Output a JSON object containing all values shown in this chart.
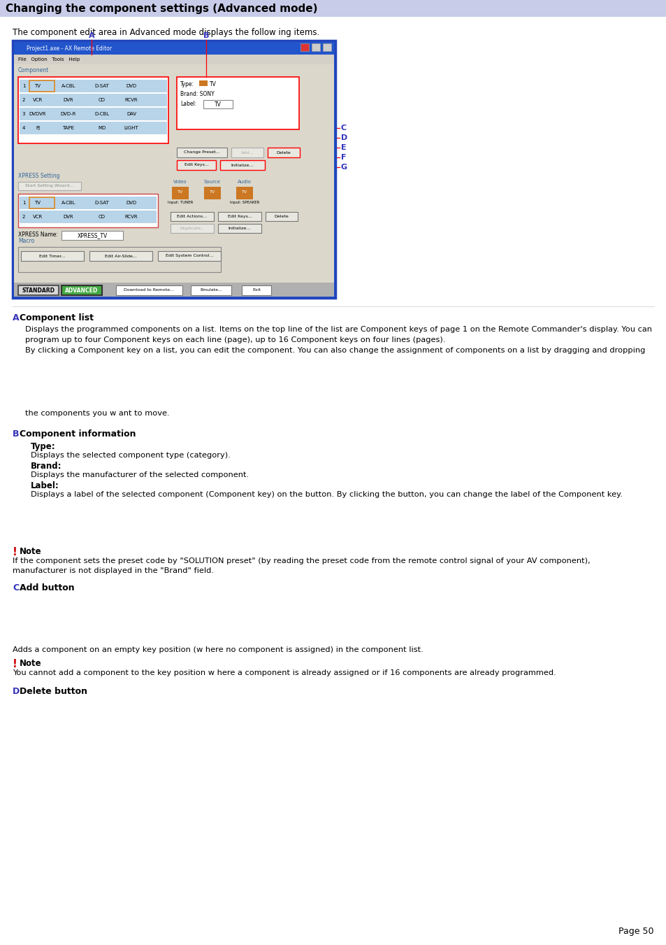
{
  "title": "Changing the component settings (Advanced mode)",
  "title_bg": "#c8cce8",
  "title_color": "#000000",
  "title_fontsize": 11,
  "page_bg": "#ffffff",
  "intro_text": "The component edit area in Advanced mode displays the follow ing items.",
  "section_A_label": "A",
  "section_A_title": "Component list",
  "section_A_body_line1": "Displays the programmed components on a list. Items on the top line of the list are Component keys of page 1 on the Remote Commander's display. You can",
  "section_A_body_line2": "program up to four Component keys on each line (page), up to 16 Component keys on four lines (pages).",
  "section_A_body_line3": "By clicking a Component key on a list, you can edit the component. You can also change the assignment of components on a list by dragging and dropping",
  "section_A_body2": "the components you w ant to move.",
  "section_B_label": "B",
  "section_B_title": "Component information",
  "section_B_type_label": "Type:",
  "section_B_type_desc": "Displays the selected component type (category).",
  "section_B_brand_label": "Brand:",
  "section_B_brand_desc": "Displays the manufacturer of the selected component.",
  "section_B_lbl_label": "Label:",
  "section_B_lbl_desc": "Displays a label of the selected component (Component key) on the button. By clicking the button, you can change the label of the Component key.",
  "note1_line1": "If the component sets the preset code by \"SOLUTION preset\" (by reading the preset code from the remote control signal of your AV component),",
  "note1_line2": "manufacturer is not displayed in the \"Brand\" field.",
  "section_C_label": "C",
  "section_C_title": "Add button",
  "section_C_body": "Adds a component on an empty key position (w here no component is assigned) in the component list.",
  "note2_text": "You cannot add a component to the key position w here a component is already assigned or if 16 components are already programmed.",
  "section_D_label": "D",
  "section_D_title": "Delete button",
  "page_number": "Page 50",
  "label_color": "#3333bb",
  "note_icon_color": "#cc0000",
  "win_title_bg": "#2255cc",
  "win_menu_bg": "#d4d0c8",
  "screen_inner_bg": "#dbd7cb",
  "comp_row_bg": "#b8d4e8",
  "comp_row_sel": "#e8d0a0",
  "btn_bg": "#e8e8e0",
  "xpress_label_color": "#336699"
}
